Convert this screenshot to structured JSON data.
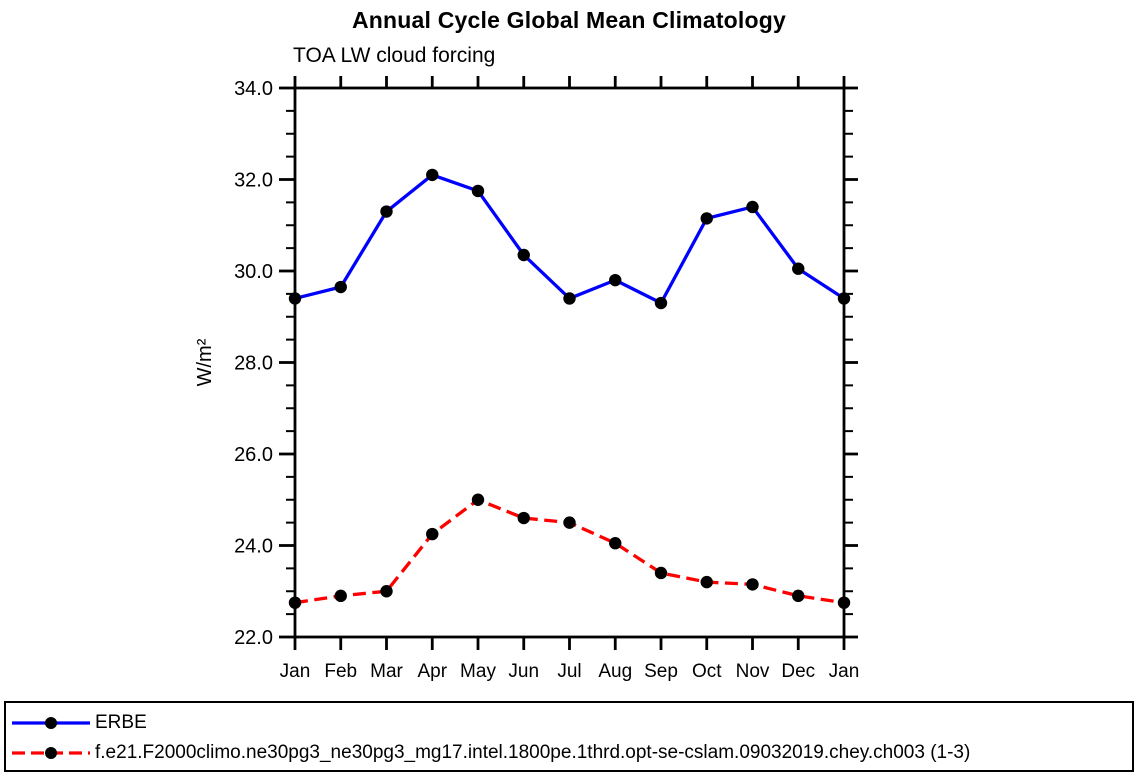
{
  "chart_data": {
    "type": "line",
    "title": "Annual Cycle Global Mean Climatology",
    "subtitle": "TOA LW cloud forcing",
    "xlabel": "",
    "ylabel": "W/m²",
    "categories": [
      "Jan",
      "Feb",
      "Mar",
      "Apr",
      "May",
      "Jun",
      "Jul",
      "Aug",
      "Sep",
      "Oct",
      "Nov",
      "Dec",
      "Jan"
    ],
    "ylim": [
      22.0,
      34.0
    ],
    "ytick_major_step": 2.0,
    "ytick_minor_step": 0.5,
    "ytick_labels": [
      "22.0",
      "24.0",
      "26.0",
      "28.0",
      "30.0",
      "32.0",
      "34.0"
    ],
    "grid": false,
    "legend_position": "bottom-outside-box",
    "axis_color": "#000000",
    "marker_shape": "filled-circle",
    "series": [
      {
        "name": "ERBE",
        "line_color": "#0000ff",
        "line_style": "solid",
        "marker_color": "#000000",
        "values": [
          29.4,
          29.65,
          31.3,
          32.1,
          31.75,
          30.35,
          29.4,
          29.8,
          29.3,
          31.15,
          31.4,
          30.05,
          29.4
        ]
      },
      {
        "name": "f.e21.F2000climo.ne30pg3_ne30pg3_mg17.intel.1800pe.1thrd.opt-se-cslam.09032019.chey.ch003 (1-3)",
        "line_color": "#ff0000",
        "line_style": "dashed",
        "marker_color": "#000000",
        "values": [
          22.75,
          22.9,
          23.0,
          24.25,
          25.0,
          24.6,
          24.5,
          24.05,
          23.4,
          23.2,
          23.15,
          22.9,
          22.75
        ]
      }
    ]
  }
}
